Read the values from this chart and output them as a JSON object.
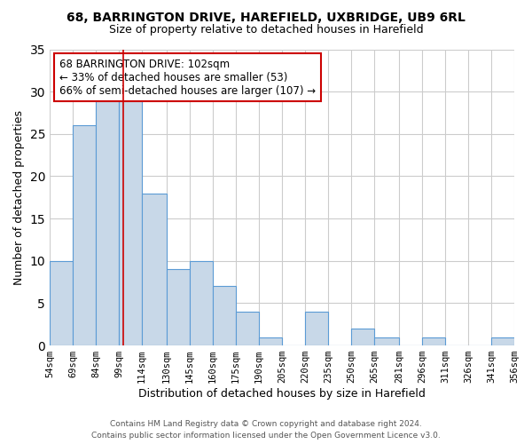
{
  "title": "68, BARRINGTON DRIVE, HAREFIELD, UXBRIDGE, UB9 6RL",
  "subtitle": "Size of property relative to detached houses in Harefield",
  "xlabel": "Distribution of detached houses by size in Harefield",
  "ylabel": "Number of detached properties",
  "bar_labels": [
    "54sqm",
    "69sqm",
    "84sqm",
    "99sqm",
    "114sqm",
    "130sqm",
    "145sqm",
    "160sqm",
    "175sqm",
    "190sqm",
    "205sqm",
    "220sqm",
    "235sqm",
    "250sqm",
    "265sqm",
    "281sqm",
    "296sqm",
    "311sqm",
    "326sqm",
    "341sqm",
    "356sqm"
  ],
  "bar_values": [
    10,
    26,
    29,
    29,
    18,
    9,
    10,
    7,
    4,
    1,
    0,
    4,
    0,
    2,
    1,
    0,
    1,
    0,
    0,
    1
  ],
  "bin_edges": [
    54,
    69,
    84,
    99,
    114,
    130,
    145,
    160,
    175,
    190,
    205,
    220,
    235,
    250,
    265,
    281,
    296,
    311,
    326,
    341,
    356
  ],
  "bar_color": "#c8d8e8",
  "bar_edge_color": "#5b9bd5",
  "vline_x": 102,
  "vline_color": "#cc0000",
  "ylim": [
    0,
    35
  ],
  "yticks": [
    0,
    5,
    10,
    15,
    20,
    25,
    30,
    35
  ],
  "annotation_line1": "68 BARRINGTON DRIVE: 102sqm",
  "annotation_line2": "← 33% of detached houses are smaller (53)",
  "annotation_line3": "66% of semi-detached houses are larger (107) →",
  "annotation_box_color": "#ffffff",
  "annotation_box_edge": "#cc0000",
  "footer_line1": "Contains HM Land Registry data © Crown copyright and database right 2024.",
  "footer_line2": "Contains public sector information licensed under the Open Government Licence v3.0.",
  "background_color": "#ffffff",
  "grid_color": "#cccccc"
}
